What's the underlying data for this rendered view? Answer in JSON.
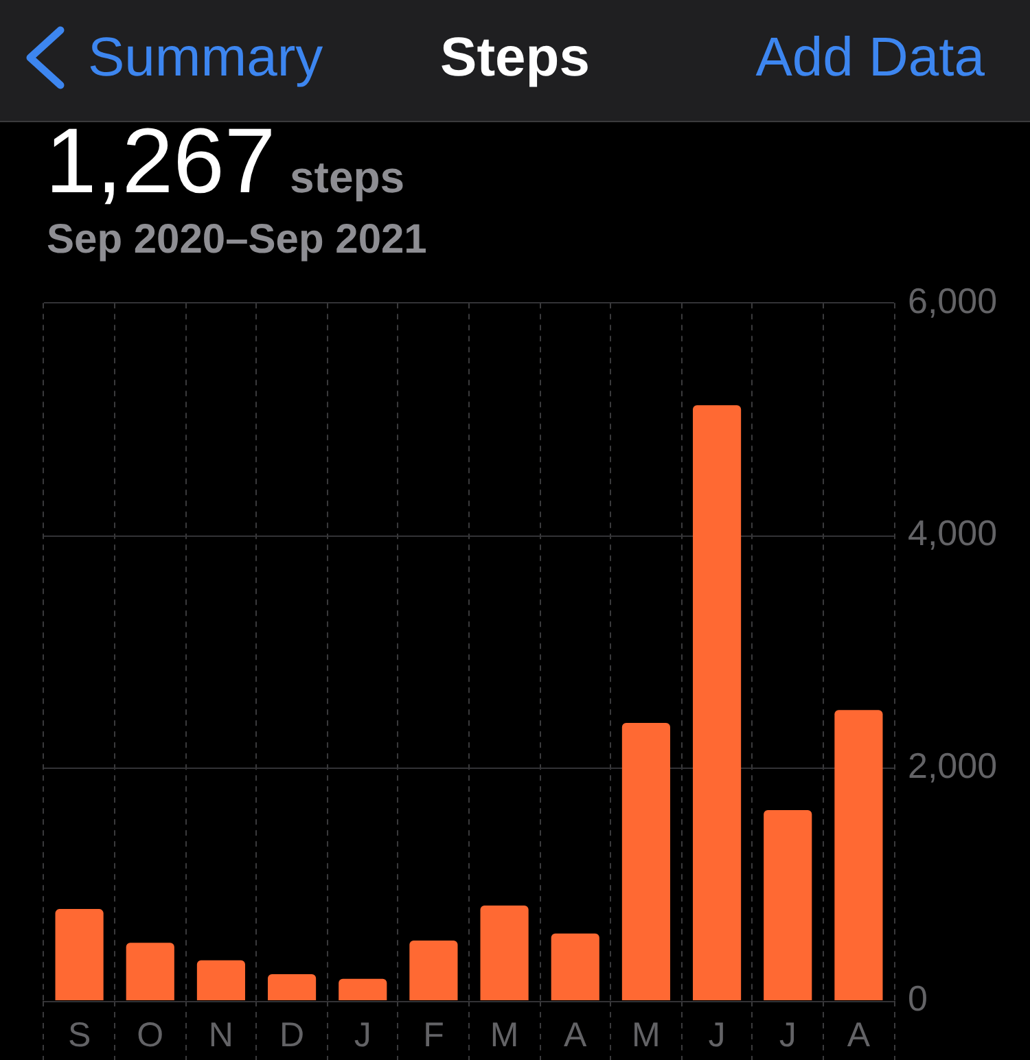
{
  "chart_data": {
    "type": "bar",
    "title": "Steps",
    "subtitle": "Sep 2020–Sep 2021",
    "annotations": [
      "Summary",
      "Add Data",
      "1,267",
      "steps"
    ],
    "categories": [
      "S",
      "O",
      "N",
      "D",
      "J",
      "F",
      "M",
      "A",
      "M",
      "J",
      "J",
      "A"
    ],
    "values": [
      790,
      500,
      350,
      230,
      190,
      520,
      820,
      580,
      2390,
      5120,
      1640,
      2500
    ],
    "color": "#ff6933",
    "ylim": [
      0,
      6000
    ],
    "yticks": [
      0,
      {
        "value": 2000,
        "label": "2,000"
      },
      {
        "value": 4000,
        "label": "4,000"
      },
      {
        "value": 6000,
        "label": "6,000"
      }
    ],
    "grid": true
  }
}
